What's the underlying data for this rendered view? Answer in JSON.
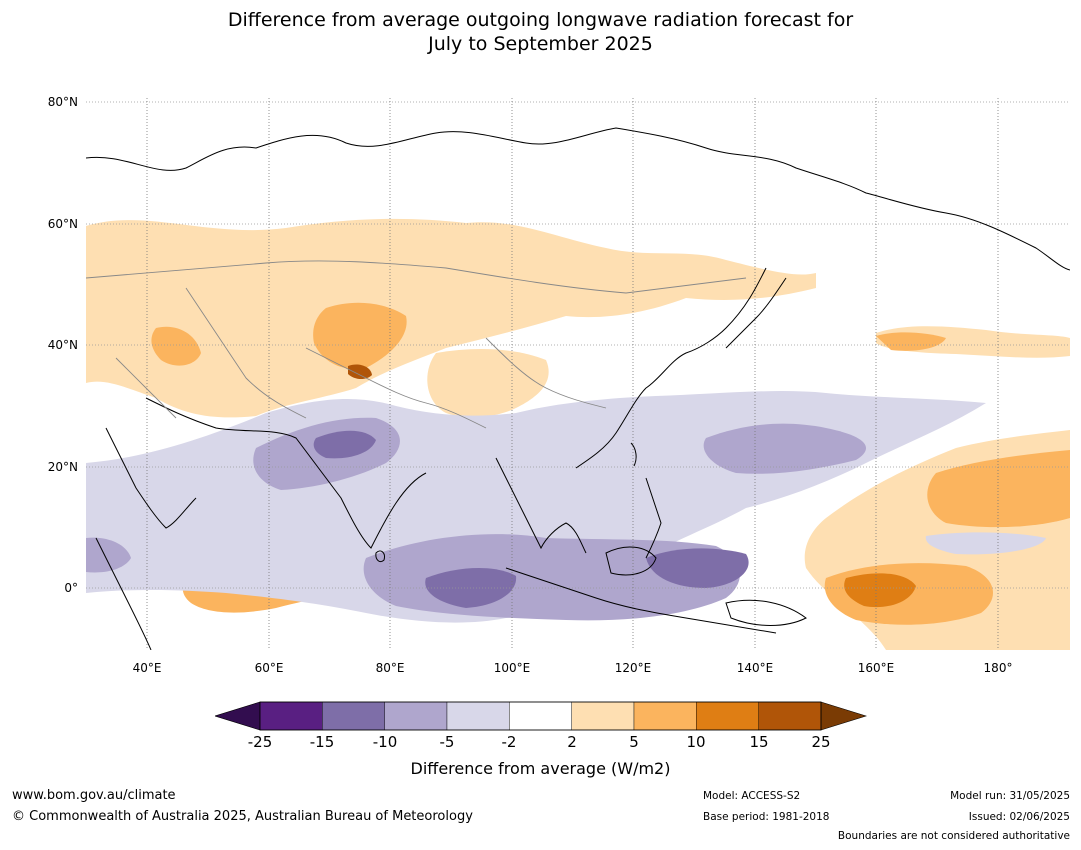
{
  "title": {
    "line1": "Difference from average outgoing longwave radiation forecast for",
    "line2": "July to September 2025"
  },
  "map": {
    "lat_labels": [
      "80°N",
      "60°N",
      "40°N",
      "20°N",
      "0°"
    ],
    "lon_labels": [
      "40°E",
      "60°E",
      "80°E",
      "100°E",
      "120°E",
      "140°E",
      "160°E",
      "180°"
    ]
  },
  "colorbar": {
    "ticks": [
      "-25",
      "-15",
      "-10",
      "-5",
      "-2",
      "2",
      "5",
      "10",
      "15",
      "25"
    ],
    "colors": [
      "#591f82",
      "#7e6ea8",
      "#afa6cd",
      "#d8d7e9",
      "#ffffff",
      "#fedfb2",
      "#fbb45e",
      "#df7e14",
      "#b05508"
    ],
    "under_color": "#320d4f",
    "over_color": "#7a3b04",
    "label": "Difference from average (W/m2)"
  },
  "footer": {
    "website": "www.bom.gov.au/climate",
    "copyright": "© Commonwealth of Australia 2025, Australian Bureau of Meteorology",
    "model": "Model: ACCESS-S2",
    "base_period": "Base period: 1981-2018",
    "model_run": "Model run: 31/05/2025",
    "issued": "Issued: 02/06/2025",
    "disclaimer": "Boundaries are not considered authoritative"
  }
}
